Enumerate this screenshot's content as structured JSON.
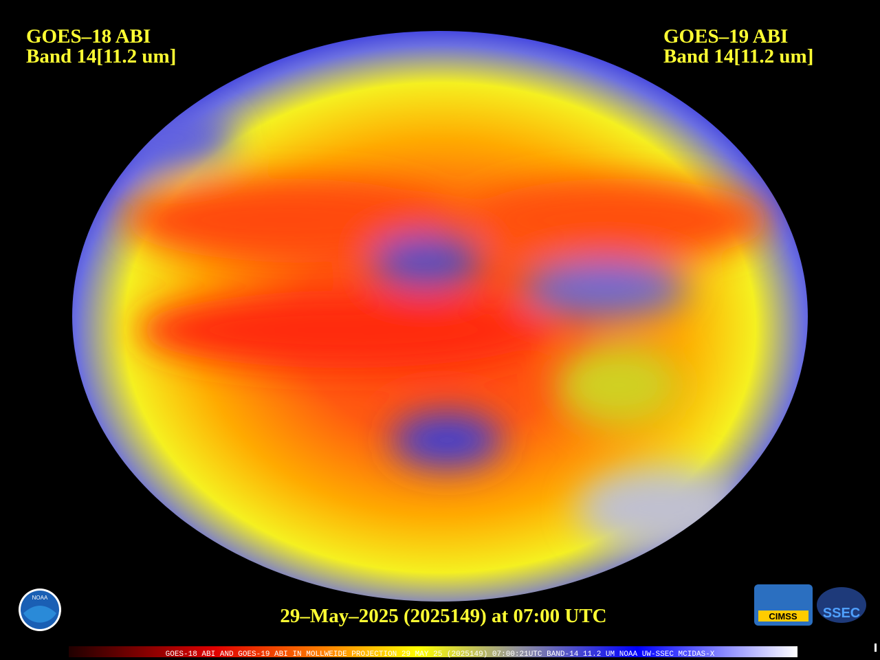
{
  "header": {
    "left": {
      "title": "GOES–18 ABI",
      "band": "Band 14[11.2 um]"
    },
    "right": {
      "title": "GOES–19 ABI",
      "band": "Band 14[11.2 um]"
    }
  },
  "timestamp": "29–May–2025 (2025149) at 07:00 UTC",
  "logos": {
    "noaa": "NOAA",
    "cimss": "CIMSS",
    "ssec": "SSEC"
  },
  "colorbar_caption": "GOES-18 ABI AND GOES-19 ABI IN MOLLWEIDE PROJECTION 29 MAY 25 (2025149) 07:00:21UTC BAND-14 11.2 UM NOAA UW-SSEC MCIDAS-X"
}
